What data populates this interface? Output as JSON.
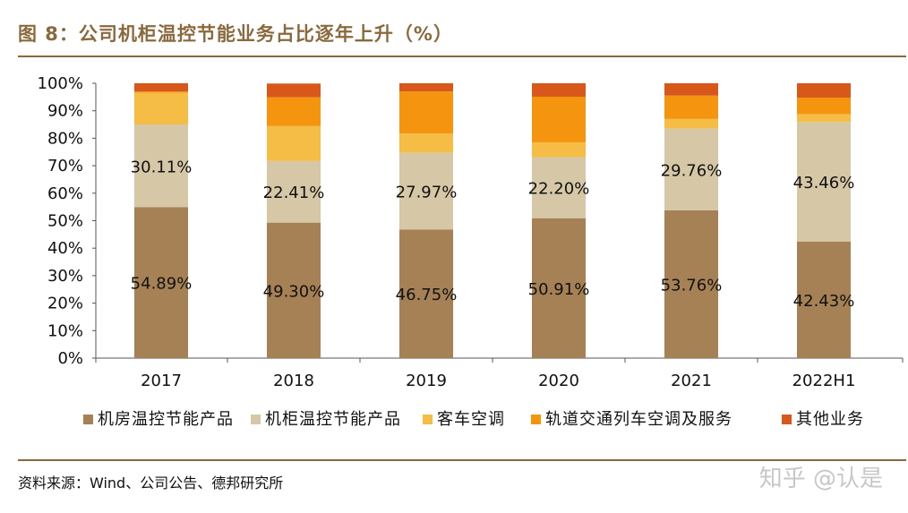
{
  "header": {
    "title": "图 8：公司机柜温控节能业务占比逐年上升（%）"
  },
  "footer": {
    "source": "资料来源：Wind、公司公告、德邦研究所",
    "watermark": "知乎 @认是"
  },
  "chart_data": {
    "type": "bar",
    "stacked": true,
    "categories": [
      "2017",
      "2018",
      "2019",
      "2020",
      "2021",
      "2022H1"
    ],
    "ylim": [
      0,
      100
    ],
    "yticks": [
      "0%",
      "10%",
      "20%",
      "30%",
      "40%",
      "50%",
      "60%",
      "70%",
      "80%",
      "90%",
      "100%"
    ],
    "legend_position": "bottom",
    "grid": false,
    "series": [
      {
        "name": "机房温控节能产品",
        "color": "#a68156",
        "values": [
          54.89,
          49.3,
          46.75,
          50.91,
          53.76,
          42.43
        ],
        "labels": [
          "54.89%",
          "49.30%",
          "46.75%",
          "50.91%",
          "53.76%",
          "42.43%"
        ]
      },
      {
        "name": "机柜温控节能产品",
        "color": "#d6c7a6",
        "values": [
          30.11,
          22.41,
          27.97,
          22.2,
          29.76,
          43.46
        ],
        "labels": [
          "30.11%",
          "22.41%",
          "27.97%",
          "22.20%",
          "29.76%",
          "43.46%"
        ]
      },
      {
        "name": "客车空调",
        "color": "#f5bd45",
        "values": [
          11.5,
          12.7,
          7.0,
          5.4,
          3.5,
          2.9
        ]
      },
      {
        "name": "轨道交通列车空调及服务",
        "color": "#f5950f",
        "values": [
          0.5,
          10.5,
          15.3,
          16.6,
          8.5,
          6.0
        ]
      },
      {
        "name": "其他业务",
        "color": "#d8571a",
        "values": [
          3.0,
          4.99,
          2.98,
          4.89,
          4.48,
          5.21
        ]
      }
    ]
  }
}
